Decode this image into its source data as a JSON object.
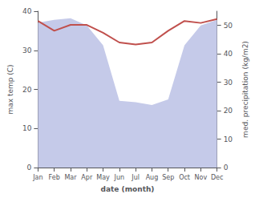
{
  "chart_data": {
    "type": "line",
    "categories": [
      "Jan",
      "Feb",
      "Mar",
      "Apr",
      "May",
      "Jun",
      "Jul",
      "Aug",
      "Sep",
      "Oct",
      "Nov",
      "Dec"
    ],
    "series": [
      {
        "type": "area",
        "color": "#c5cae9",
        "axis": "y2",
        "values": [
          51.0,
          52.0,
          52.5,
          50.0,
          43.0,
          23.5,
          23.0,
          22.0,
          24.0,
          43.0,
          50.0,
          52.0
        ]
      },
      {
        "type": "line",
        "color": "#c0504d",
        "values": [
          37.5,
          35.0,
          36.5,
          36.5,
          34.5,
          32.0,
          31.5,
          32.0,
          35.0,
          37.5,
          37.0,
          38.0
        ]
      }
    ],
    "xlabel": "date (month)",
    "ylabel": "max temp (C)",
    "y2label": "med. precipitation (kg/m2)",
    "ylim": [
      0,
      40
    ],
    "yticks": [
      0,
      10,
      20,
      30,
      40
    ],
    "y2lim": [
      0,
      55
    ],
    "y2ticks": [
      0,
      10,
      20,
      30,
      40,
      50
    ],
    "grid": false
  }
}
